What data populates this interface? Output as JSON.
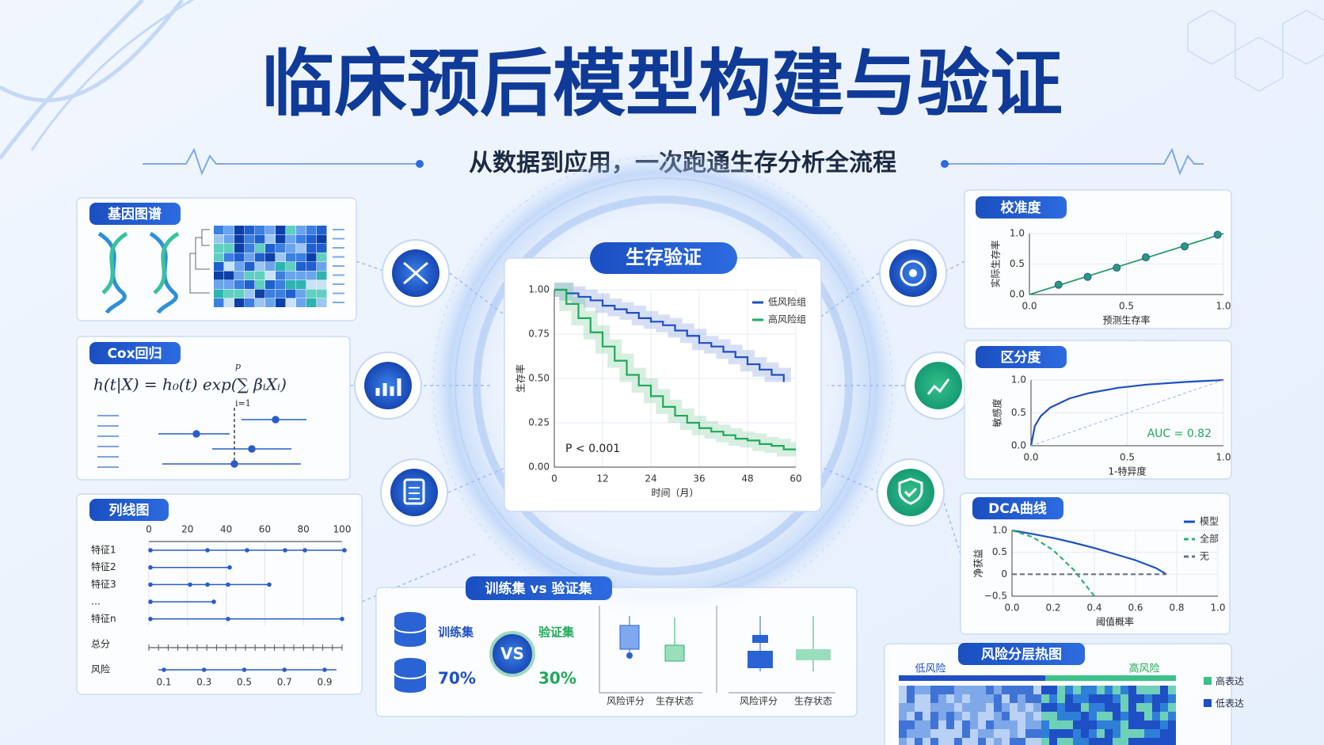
{
  "header": {
    "title": "临床预后模型构建与验证",
    "subtitle": "从数据到应用，一次跑通生存分析全流程"
  },
  "gene_map": {
    "title": "基因图谱"
  },
  "cox": {
    "title": "Cox回归",
    "formula": "h(t|X) = h₀(t) exp(∑ βᵢXᵢ)",
    "sum_upper": "p",
    "sum_lower": "i=1"
  },
  "nomogram": {
    "title": "列线图",
    "points_ticks": [
      0,
      20,
      40,
      60,
      80,
      100
    ],
    "rows": [
      "特征1",
      "特征2",
      "特征3",
      "…",
      "特征n"
    ],
    "total_label": "总分",
    "risk_label": "风险",
    "risk_ticks": [
      0.1,
      0.3,
      0.5,
      0.7,
      0.9
    ]
  },
  "charts": {
    "survival": {
      "type": "line",
      "step": true,
      "title": "生存验证",
      "xlabel": "时间（月）",
      "ylabel": "生存率",
      "x": [
        0,
        3,
        6,
        9,
        12,
        15,
        18,
        21,
        24,
        27,
        30,
        33,
        36,
        39,
        42,
        45,
        48,
        51,
        54,
        57,
        60
      ],
      "xlim": [
        0,
        60
      ],
      "ylim": [
        0,
        1
      ],
      "xticks": [
        0,
        12,
        24,
        36,
        48,
        60
      ],
      "yticks": [
        {
          "value": 0,
          "label": "0.00"
        },
        {
          "value": 0.25,
          "label": "0.25"
        },
        {
          "value": 0.5,
          "label": "0.50"
        },
        {
          "value": 0.75,
          "label": "0.75"
        },
        {
          "value": 1,
          "label": "1.00"
        }
      ],
      "series": [
        {
          "name": "低风险组",
          "color": "#1f4fc4",
          "values": [
            1,
            0.98,
            0.96,
            0.94,
            0.91,
            0.89,
            0.87,
            0.84,
            0.82,
            0.8,
            0.77,
            0.74,
            0.7,
            0.68,
            0.65,
            0.62,
            0.58,
            0.55,
            0.52,
            0.48,
            null
          ]
        },
        {
          "name": "高风险组",
          "color": "#21a85a",
          "values": [
            1,
            0.92,
            0.84,
            0.76,
            0.68,
            0.6,
            0.52,
            0.46,
            0.4,
            0.34,
            0.29,
            0.25,
            0.22,
            0.2,
            0.18,
            0.16,
            0.15,
            0.13,
            0.12,
            0.1,
            0.1
          ]
        }
      ],
      "legend": "upper right",
      "annotation": "P < 0.001"
    },
    "calibration": {
      "type": "scatter",
      "title": "校准度",
      "xlabel": "预测生存率",
      "ylabel": "实际生存率",
      "color": "#2a9d6a",
      "x": [
        0.15,
        0.3,
        0.45,
        0.6,
        0.8,
        0.97
      ],
      "values": [
        0.16,
        0.29,
        0.44,
        0.61,
        0.79,
        0.98
      ],
      "xlim": [
        0,
        1
      ],
      "ylim": [
        0,
        1
      ],
      "xticks": [
        {
          "value": 0,
          "label": "0.0"
        },
        0.5,
        {
          "value": 1,
          "label": "1.0"
        }
      ],
      "yticks": [
        {
          "value": 0,
          "label": "0.0"
        },
        0.5,
        {
          "value": 1,
          "label": "1.0"
        }
      ]
    },
    "roc": {
      "type": "line",
      "title": "区分度",
      "xlabel": "1-特异度",
      "ylabel": "敏感度",
      "color": "#1f4fc4",
      "x": [
        0,
        0.02,
        0.05,
        0.1,
        0.2,
        0.3,
        0.45,
        0.6,
        0.8,
        1
      ],
      "values": [
        0,
        0.3,
        0.45,
        0.58,
        0.72,
        0.8,
        0.88,
        0.93,
        0.97,
        1
      ],
      "xlim": [
        0,
        1
      ],
      "ylim": [
        0,
        1
      ],
      "xticks": [
        {
          "value": 0,
          "label": "0.0"
        },
        0.5,
        {
          "value": 1,
          "label": "1.0"
        }
      ],
      "yticks": [
        {
          "value": 0,
          "label": "0.0"
        },
        0.5,
        {
          "value": 1,
          "label": "1.0"
        }
      ],
      "annotation": "AUC = 0.82"
    },
    "dca": {
      "type": "line",
      "title": "DCA曲线",
      "xlabel": "阈值概率",
      "ylabel": "净获益",
      "x": [
        0,
        0.1,
        0.2,
        0.3,
        0.4,
        0.5,
        0.6,
        0.7,
        0.75
      ],
      "series": [
        {
          "name": "模型",
          "color": "#1f4fc4",
          "values": [
            1,
            0.92,
            0.83,
            0.72,
            0.6,
            0.46,
            0.32,
            0.14,
            0
          ]
        },
        {
          "name": "全部",
          "color": "#2fb36b",
          "values": [
            1,
            0.85,
            0.55,
            0.1,
            -0.5,
            null,
            null,
            null,
            null
          ]
        },
        {
          "name": "无",
          "color": "#6b7385",
          "values": [
            0,
            0,
            0,
            0,
            0,
            0,
            0,
            0,
            0
          ]
        }
      ],
      "xlim": [
        0,
        1
      ],
      "ylim": [
        -0.5,
        1
      ],
      "xticks": [
        {
          "value": 0,
          "label": "0.0"
        },
        0.2,
        0.4,
        0.6,
        0.8,
        {
          "value": 1,
          "label": "1.0"
        }
      ],
      "yticks": [
        {
          "value": -0.5,
          "label": "−0.5"
        },
        0,
        0.5,
        {
          "value": 1,
          "label": "1.0"
        }
      ],
      "legend": "upper right"
    }
  },
  "train_val": {
    "title": "训练集 vs 验证集",
    "train_label": "训练集",
    "train_pct": "70%",
    "vs": "VS",
    "val_label": "验证集",
    "val_pct": "30%",
    "box_labels": [
      "风险评分",
      "生存状态",
      "风险评分",
      "生存状态"
    ]
  },
  "heatmap": {
    "title": "风险分层热图",
    "low": "低风险",
    "high": "高风险",
    "legend": [
      "高表达",
      "低表达"
    ]
  }
}
